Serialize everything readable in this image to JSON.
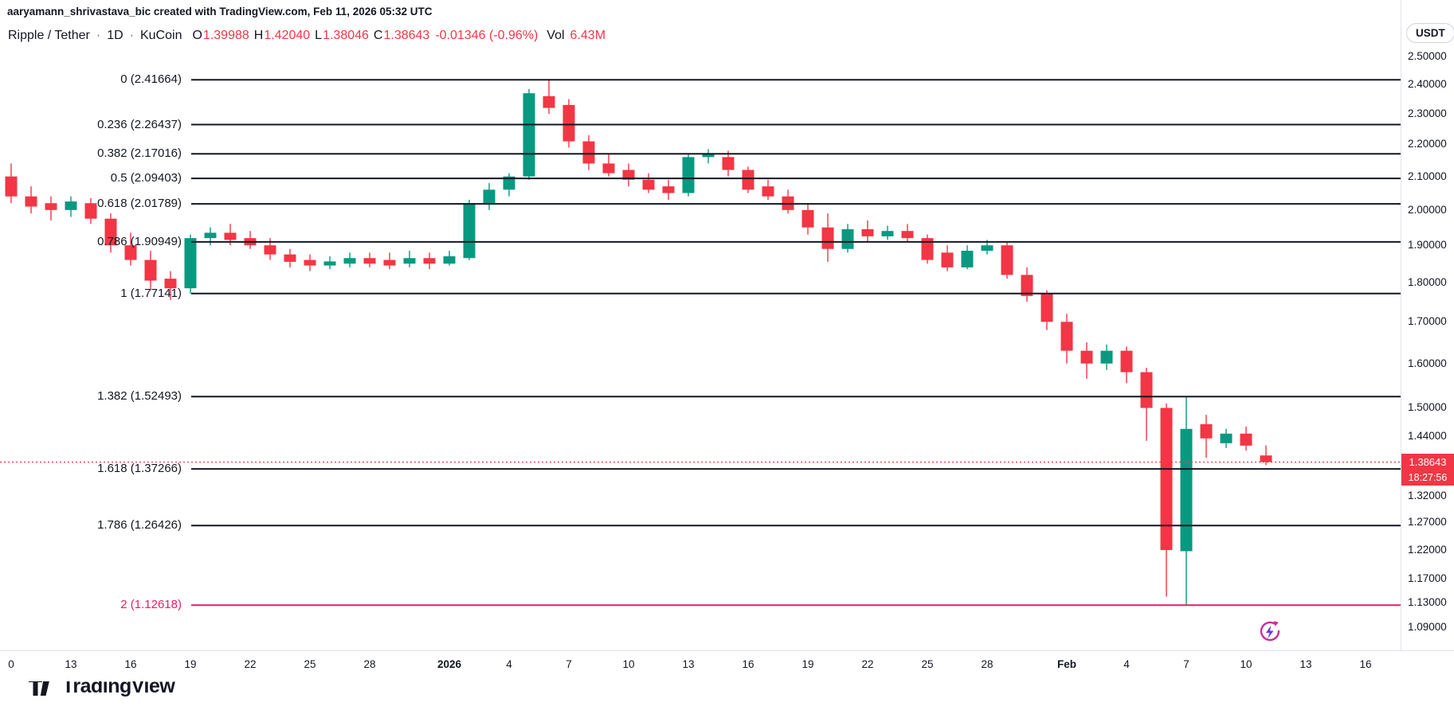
{
  "attribution": "aaryamann_shrivastava_bic created with TradingView.com, Feb 11, 2026 05:32 UTC",
  "header": {
    "symbol": "Ripple / Tether",
    "separator": "·",
    "interval": "1D",
    "exchange": "KuCoin",
    "ohlc": [
      {
        "label": "O",
        "value": "1.39988"
      },
      {
        "label": "H",
        "value": "1.42040"
      },
      {
        "label": "L",
        "value": "1.38046"
      },
      {
        "label": "C",
        "value": "1.38643"
      }
    ],
    "change": "-0.01346 (-0.96%)",
    "volume_label": "Vol",
    "volume_value": "6.43M"
  },
  "price_scale": {
    "currency_button": "USDT",
    "labels": [
      "2.50000",
      "2.40000",
      "2.30000",
      "2.20000",
      "2.10000",
      "2.00000",
      "1.90000",
      "1.80000",
      "1.70000",
      "1.60000",
      "1.50000",
      "1.44000",
      "1.32000",
      "1.27000",
      "1.22000",
      "1.17000",
      "1.13000",
      "1.09000"
    ],
    "last_price": "1.38643",
    "countdown": "18:27:56"
  },
  "time_scale": {
    "labels": [
      {
        "text": "0",
        "i": 0,
        "bold": false
      },
      {
        "text": "13",
        "i": 3,
        "bold": false
      },
      {
        "text": "16",
        "i": 6,
        "bold": false
      },
      {
        "text": "19",
        "i": 9,
        "bold": false
      },
      {
        "text": "22",
        "i": 12,
        "bold": false
      },
      {
        "text": "25",
        "i": 15,
        "bold": false
      },
      {
        "text": "28",
        "i": 18,
        "bold": false
      },
      {
        "text": "2026",
        "i": 22,
        "bold": true
      },
      {
        "text": "4",
        "i": 25,
        "bold": false
      },
      {
        "text": "7",
        "i": 28,
        "bold": false
      },
      {
        "text": "10",
        "i": 31,
        "bold": false
      },
      {
        "text": "13",
        "i": 34,
        "bold": false
      },
      {
        "text": "16",
        "i": 37,
        "bold": false
      },
      {
        "text": "19",
        "i": 40,
        "bold": false
      },
      {
        "text": "22",
        "i": 43,
        "bold": false
      },
      {
        "text": "25",
        "i": 46,
        "bold": false
      },
      {
        "text": "28",
        "i": 49,
        "bold": false
      },
      {
        "text": "Feb",
        "i": 53,
        "bold": true
      },
      {
        "text": "4",
        "i": 56,
        "bold": false
      },
      {
        "text": "7",
        "i": 59,
        "bold": false
      },
      {
        "text": "10",
        "i": 62,
        "bold": false
      },
      {
        "text": "13",
        "i": 65,
        "bold": false
      },
      {
        "text": "16",
        "i": 68,
        "bold": false
      }
    ]
  },
  "icons": {
    "go_to_realtime": "lightning-circle-icon",
    "logo_mark": "tradingview-monogram"
  },
  "logo": {
    "text": "TradingView"
  },
  "colors": {
    "up": "#089981",
    "down": "#f23645",
    "last_price_line": "#f23645",
    "fib_highlight": "#e91e63",
    "axis_border": "#e0e3eb"
  },
  "chart_data": {
    "type": "candlestick",
    "title": "Ripple / Tether · 1D · KuCoin",
    "yscale": "log",
    "visible_price_range": [
      1.064,
      2.515
    ],
    "up_color": "#089981",
    "down_color": "#f23645",
    "fib_levels": [
      {
        "label": "0 (2.41664)",
        "value": 2.41664,
        "color": "#131722"
      },
      {
        "label": "0.236 (2.26437)",
        "value": 2.26437,
        "color": "#131722"
      },
      {
        "label": "0.382 (2.17016)",
        "value": 2.17016,
        "color": "#131722"
      },
      {
        "label": "0.5 (2.09403)",
        "value": 2.09403,
        "color": "#131722"
      },
      {
        "label": "0.618 (2.01789)",
        "value": 2.01789,
        "color": "#131722"
      },
      {
        "label": "0.786 (1.90949)",
        "value": 1.90949,
        "color": "#131722"
      },
      {
        "label": "1 (1.77141)",
        "value": 1.77141,
        "color": "#131722"
      },
      {
        "label": "1.382 (1.52493)",
        "value": 1.52493,
        "color": "#131722"
      },
      {
        "label": "1.618 (1.37266)",
        "value": 1.37266,
        "color": "#131722"
      },
      {
        "label": "1.786 (1.26426)",
        "value": 1.26426,
        "color": "#131722"
      },
      {
        "label": "2 (1.12618)",
        "value": 1.12618,
        "color": "#e91e63"
      }
    ],
    "candles": [
      {
        "d": "Dec 10",
        "o": 2.1,
        "h": 2.14,
        "l": 2.02,
        "c": 2.04
      },
      {
        "d": "Dec 11",
        "o": 2.04,
        "h": 2.07,
        "l": 1.99,
        "c": 2.01
      },
      {
        "d": "Dec 12",
        "o": 2.02,
        "h": 2.04,
        "l": 1.97,
        "c": 2.0
      },
      {
        "d": "Dec 13",
        "o": 2.0,
        "h": 2.04,
        "l": 1.98,
        "c": 2.025
      },
      {
        "d": "Dec 14",
        "o": 2.02,
        "h": 2.035,
        "l": 1.96,
        "c": 1.975
      },
      {
        "d": "Dec 15",
        "o": 1.975,
        "h": 1.99,
        "l": 1.88,
        "c": 1.9
      },
      {
        "d": "Dec 16",
        "o": 1.9,
        "h": 1.935,
        "l": 1.845,
        "c": 1.86
      },
      {
        "d": "Dec 17",
        "o": 1.86,
        "h": 1.885,
        "l": 1.78,
        "c": 1.805
      },
      {
        "d": "Dec 18",
        "o": 1.81,
        "h": 1.83,
        "l": 1.755,
        "c": 1.785
      },
      {
        "d": "Dec 19",
        "o": 1.785,
        "h": 1.93,
        "l": 1.771,
        "c": 1.92
      },
      {
        "d": "Dec 20",
        "o": 1.92,
        "h": 1.95,
        "l": 1.9,
        "c": 1.935
      },
      {
        "d": "Dec 21",
        "o": 1.935,
        "h": 1.96,
        "l": 1.9,
        "c": 1.915
      },
      {
        "d": "Dec 22",
        "o": 1.92,
        "h": 1.94,
        "l": 1.89,
        "c": 1.9
      },
      {
        "d": "Dec 23",
        "o": 1.9,
        "h": 1.92,
        "l": 1.86,
        "c": 1.875
      },
      {
        "d": "Dec 24",
        "o": 1.875,
        "h": 1.89,
        "l": 1.84,
        "c": 1.855
      },
      {
        "d": "Dec 25",
        "o": 1.86,
        "h": 1.875,
        "l": 1.83,
        "c": 1.845
      },
      {
        "d": "Dec 26",
        "o": 1.845,
        "h": 1.87,
        "l": 1.835,
        "c": 1.856
      },
      {
        "d": "Dec 27",
        "o": 1.85,
        "h": 1.88,
        "l": 1.84,
        "c": 1.865
      },
      {
        "d": "Dec 28",
        "o": 1.865,
        "h": 1.88,
        "l": 1.84,
        "c": 1.85
      },
      {
        "d": "Dec 29",
        "o": 1.86,
        "h": 1.88,
        "l": 1.835,
        "c": 1.845
      },
      {
        "d": "Dec 30",
        "o": 1.85,
        "h": 1.885,
        "l": 1.84,
        "c": 1.865
      },
      {
        "d": "Dec 31",
        "o": 1.865,
        "h": 1.88,
        "l": 1.835,
        "c": 1.85
      },
      {
        "d": "Jan 1",
        "o": 1.85,
        "h": 1.885,
        "l": 1.845,
        "c": 1.87
      },
      {
        "d": "Jan 2",
        "o": 1.865,
        "h": 2.03,
        "l": 1.86,
        "c": 2.02
      },
      {
        "d": "Jan 3",
        "o": 2.02,
        "h": 2.08,
        "l": 2.0,
        "c": 2.06
      },
      {
        "d": "Jan 4",
        "o": 2.06,
        "h": 2.11,
        "l": 2.04,
        "c": 2.1
      },
      {
        "d": "Jan 5",
        "o": 2.1,
        "h": 2.385,
        "l": 2.09,
        "c": 2.37
      },
      {
        "d": "Jan 6",
        "o": 2.36,
        "h": 2.41664,
        "l": 2.3,
        "c": 2.32
      },
      {
        "d": "Jan 7",
        "o": 2.33,
        "h": 2.35,
        "l": 2.19,
        "c": 2.21
      },
      {
        "d": "Jan 8",
        "o": 2.21,
        "h": 2.23,
        "l": 2.12,
        "c": 2.14
      },
      {
        "d": "Jan 9",
        "o": 2.14,
        "h": 2.17,
        "l": 2.1,
        "c": 2.11
      },
      {
        "d": "Jan 10",
        "o": 2.12,
        "h": 2.14,
        "l": 2.07,
        "c": 2.09
      },
      {
        "d": "Jan 11",
        "o": 2.09,
        "h": 2.11,
        "l": 2.05,
        "c": 2.06
      },
      {
        "d": "Jan 12",
        "o": 2.07,
        "h": 2.09,
        "l": 2.03,
        "c": 2.05
      },
      {
        "d": "Jan 13",
        "o": 2.05,
        "h": 2.17,
        "l": 2.04,
        "c": 2.16
      },
      {
        "d": "Jan 14",
        "o": 2.16,
        "h": 2.185,
        "l": 2.14,
        "c": 2.17
      },
      {
        "d": "Jan 15",
        "o": 2.16,
        "h": 2.18,
        "l": 2.1,
        "c": 2.12
      },
      {
        "d": "Jan 16",
        "o": 2.12,
        "h": 2.13,
        "l": 2.05,
        "c": 2.06
      },
      {
        "d": "Jan 17",
        "o": 2.07,
        "h": 2.09,
        "l": 2.03,
        "c": 2.04
      },
      {
        "d": "Jan 18",
        "o": 2.04,
        "h": 2.06,
        "l": 1.99,
        "c": 2.0
      },
      {
        "d": "Jan 19",
        "o": 2.0,
        "h": 2.02,
        "l": 1.93,
        "c": 1.95
      },
      {
        "d": "Jan 20",
        "o": 1.95,
        "h": 1.99,
        "l": 1.855,
        "c": 1.89
      },
      {
        "d": "Jan 21",
        "o": 1.89,
        "h": 1.96,
        "l": 1.88,
        "c": 1.945
      },
      {
        "d": "Jan 22",
        "o": 1.945,
        "h": 1.97,
        "l": 1.91,
        "c": 1.925
      },
      {
        "d": "Jan 23",
        "o": 1.925,
        "h": 1.955,
        "l": 1.915,
        "c": 1.94
      },
      {
        "d": "Jan 24",
        "o": 1.94,
        "h": 1.96,
        "l": 1.91,
        "c": 1.92
      },
      {
        "d": "Jan 25",
        "o": 1.92,
        "h": 1.93,
        "l": 1.85,
        "c": 1.86
      },
      {
        "d": "Jan 26",
        "o": 1.88,
        "h": 1.9,
        "l": 1.83,
        "c": 1.84
      },
      {
        "d": "Jan 27",
        "o": 1.84,
        "h": 1.9,
        "l": 1.835,
        "c": 1.885
      },
      {
        "d": "Jan 28",
        "o": 1.885,
        "h": 1.915,
        "l": 1.875,
        "c": 1.9
      },
      {
        "d": "Jan 29",
        "o": 1.9,
        "h": 1.91,
        "l": 1.81,
        "c": 1.82
      },
      {
        "d": "Jan 30",
        "o": 1.82,
        "h": 1.84,
        "l": 1.75,
        "c": 1.765
      },
      {
        "d": "Jan 31",
        "o": 1.77,
        "h": 1.78,
        "l": 1.68,
        "c": 1.7
      },
      {
        "d": "Feb 1",
        "o": 1.7,
        "h": 1.72,
        "l": 1.6,
        "c": 1.63
      },
      {
        "d": "Feb 2",
        "o": 1.63,
        "h": 1.65,
        "l": 1.565,
        "c": 1.6
      },
      {
        "d": "Feb 3",
        "o": 1.6,
        "h": 1.645,
        "l": 1.585,
        "c": 1.63
      },
      {
        "d": "Feb 4",
        "o": 1.63,
        "h": 1.64,
        "l": 1.555,
        "c": 1.58
      },
      {
        "d": "Feb 5",
        "o": 1.58,
        "h": 1.59,
        "l": 1.43,
        "c": 1.5
      },
      {
        "d": "Feb 6",
        "o": 1.5,
        "h": 1.51,
        "l": 1.14,
        "c": 1.22
      },
      {
        "d": "Feb 7",
        "o": 1.218,
        "h": 1.525,
        "l": 1.126,
        "c": 1.455
      },
      {
        "d": "Feb 8",
        "o": 1.465,
        "h": 1.485,
        "l": 1.395,
        "c": 1.435
      },
      {
        "d": "Feb 9",
        "o": 1.425,
        "h": 1.455,
        "l": 1.415,
        "c": 1.445
      },
      {
        "d": "Feb 10",
        "o": 1.445,
        "h": 1.46,
        "l": 1.41,
        "c": 1.42
      },
      {
        "d": "Feb 11",
        "o": 1.39988,
        "h": 1.4204,
        "l": 1.38046,
        "c": 1.38643
      }
    ]
  }
}
